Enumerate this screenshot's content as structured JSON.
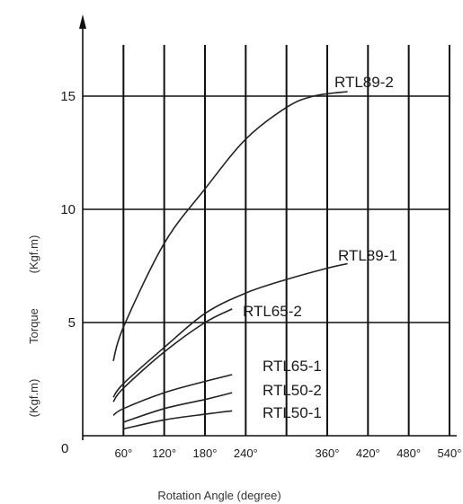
{
  "chart_data": {
    "type": "line",
    "title": "",
    "xlabel": "Rotation Angle (degree)",
    "ylabel_parts": [
      "(Kgf.m)",
      "Torque",
      "(Kgf.m)"
    ],
    "origin_label": "0",
    "x_ticks": [
      {
        "value": 60,
        "label": "60°"
      },
      {
        "value": 120,
        "label": "120°"
      },
      {
        "value": 180,
        "label": "180°"
      },
      {
        "value": 240,
        "label": "240°"
      },
      {
        "value": 360,
        "label": "360°"
      },
      {
        "value": 420,
        "label": "420°"
      },
      {
        "value": 480,
        "label": "480°"
      },
      {
        "value": 540,
        "label": "540°"
      }
    ],
    "y_ticks": [
      {
        "value": 5,
        "label": "5"
      },
      {
        "value": 10,
        "label": "10"
      },
      {
        "value": 15,
        "label": "15"
      }
    ],
    "x_gridlines": [
      60,
      120,
      180,
      240,
      300,
      360,
      420,
      480,
      540
    ],
    "xlim": [
      0,
      560
    ],
    "ylim": [
      0,
      18
    ],
    "grid": true,
    "series": [
      {
        "name": "RTL89-2",
        "points": [
          [
            45,
            3.3
          ],
          [
            60,
            4.8
          ],
          [
            120,
            8.5
          ],
          [
            180,
            10.9
          ],
          [
            240,
            13.1
          ],
          [
            300,
            14.5
          ],
          [
            340,
            15.0
          ],
          [
            390,
            15.2
          ]
        ]
      },
      {
        "name": "RTL89-1",
        "points": [
          [
            45,
            1.7
          ],
          [
            60,
            2.3
          ],
          [
            120,
            3.9
          ],
          [
            180,
            5.4
          ],
          [
            240,
            6.3
          ],
          [
            300,
            6.9
          ],
          [
            360,
            7.4
          ],
          [
            390,
            7.6
          ]
        ]
      },
      {
        "name": "RTL65-2",
        "points": [
          [
            45,
            1.5
          ],
          [
            60,
            2.1
          ],
          [
            120,
            3.7
          ],
          [
            180,
            5.0
          ],
          [
            220,
            5.6
          ]
        ]
      },
      {
        "name": "RTL65-1",
        "points": [
          [
            45,
            0.9
          ],
          [
            60,
            1.2
          ],
          [
            120,
            1.9
          ],
          [
            180,
            2.4
          ],
          [
            220,
            2.7
          ]
        ]
      },
      {
        "name": "RTL50-2",
        "points": [
          [
            60,
            0.6
          ],
          [
            120,
            1.2
          ],
          [
            180,
            1.6
          ],
          [
            220,
            1.9
          ]
        ]
      },
      {
        "name": "RTL50-1",
        "points": [
          [
            60,
            0.3
          ],
          [
            120,
            0.7
          ],
          [
            180,
            0.95
          ],
          [
            220,
            1.1
          ]
        ]
      }
    ]
  }
}
